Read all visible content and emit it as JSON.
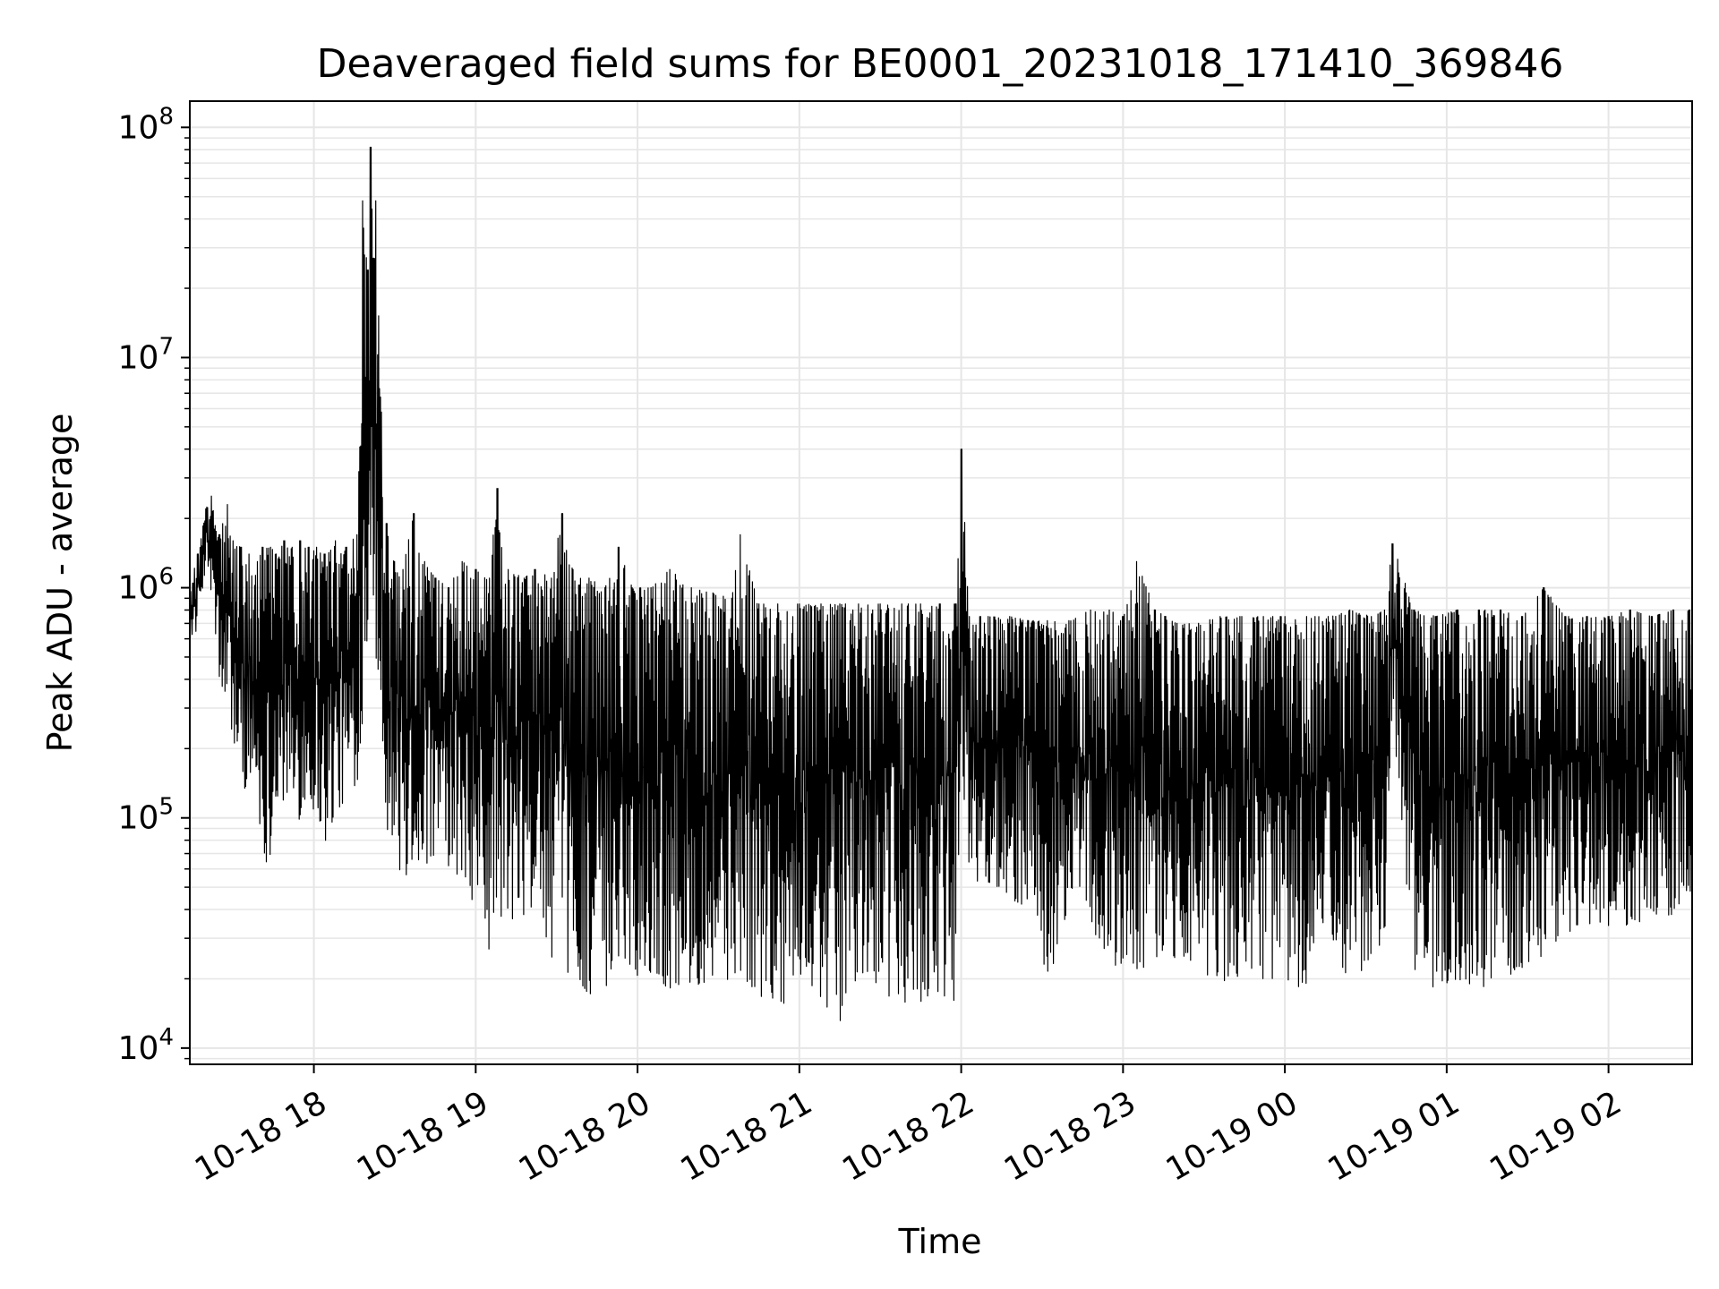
{
  "chart_data": {
    "type": "line",
    "title": "Deaveraged field sums for BE0001_20231018_171410_369846",
    "xlabel": "Time",
    "ylabel": "Peak ADU - average",
    "y_scale": "log",
    "ylim": [
      8500,
      130000000
    ],
    "xlim": [
      "2023-10-18 17:14",
      "2023-10-19 02:31"
    ],
    "grid": true,
    "colors": {
      "line": "#000000",
      "grid": "#e6e6e6",
      "axes": "#000000"
    },
    "x_tick_labels": [
      "10-18 18",
      "10-18 19",
      "10-18 20",
      "10-18 21",
      "10-18 22",
      "10-18 23",
      "10-19 00",
      "10-19 01",
      "10-19 02"
    ],
    "x_tick_times": [
      "2023-10-18 18:00",
      "2023-10-18 19:00",
      "2023-10-18 20:00",
      "2023-10-18 21:00",
      "2023-10-18 22:00",
      "2023-10-18 23:00",
      "2023-10-19 00:00",
      "2023-10-19 01:00",
      "2023-10-19 02:00"
    ],
    "y_ticks": [
      {
        "value": 10000,
        "base": "10",
        "exp": "4"
      },
      {
        "value": 100000,
        "base": "10",
        "exp": "5"
      },
      {
        "value": 1000000,
        "base": "10",
        "exp": "6"
      },
      {
        "value": 10000000,
        "base": "10",
        "exp": "7"
      },
      {
        "value": 100000000,
        "base": "10",
        "exp": "8"
      }
    ],
    "series": [
      {
        "color": "#000000",
        "x": [
          "2023-10-18 17:14",
          "2023-10-18 17:17",
          "2023-10-18 17:20",
          "2023-10-18 17:22",
          "2023-10-18 17:25",
          "2023-10-18 17:28",
          "2023-10-18 17:30",
          "2023-10-18 17:33",
          "2023-10-18 17:36",
          "2023-10-18 17:39",
          "2023-10-18 17:41",
          "2023-10-18 17:44",
          "2023-10-18 17:46",
          "2023-10-18 17:49",
          "2023-10-18 17:52",
          "2023-10-18 17:55",
          "2023-10-18 17:58",
          "2023-10-18 18:01",
          "2023-10-18 18:04",
          "2023-10-18 18:08",
          "2023-10-18 18:12",
          "2023-10-18 18:16",
          "2023-10-18 18:18",
          "2023-10-18 18:20",
          "2023-10-18 18:21",
          "2023-10-18 18:22",
          "2023-10-18 18:23",
          "2023-10-18 18:25",
          "2023-10-18 18:27",
          "2023-10-18 18:30",
          "2023-10-18 18:33",
          "2023-10-18 18:37",
          "2023-10-18 18:41",
          "2023-10-18 18:45",
          "2023-10-18 18:50",
          "2023-10-18 18:55",
          "2023-10-18 19:00",
          "2023-10-18 19:05",
          "2023-10-18 19:08",
          "2023-10-18 19:12",
          "2023-10-18 19:18",
          "2023-10-18 19:22",
          "2023-10-18 19:28",
          "2023-10-18 19:32",
          "2023-10-18 19:36",
          "2023-10-18 19:42",
          "2023-10-18 19:48",
          "2023-10-18 19:53",
          "2023-10-18 19:58",
          "2023-10-18 20:05",
          "2023-10-18 20:12",
          "2023-10-18 20:20",
          "2023-10-18 20:28",
          "2023-10-18 20:35",
          "2023-10-18 20:38",
          "2023-10-18 20:45",
          "2023-10-18 20:52",
          "2023-10-18 21:00",
          "2023-10-18 21:08",
          "2023-10-18 21:15",
          "2023-10-18 21:22",
          "2023-10-18 21:30",
          "2023-10-18 21:38",
          "2023-10-18 21:45",
          "2023-10-18 21:52",
          "2023-10-18 21:58",
          "2023-10-18 22:00",
          "2023-10-18 22:03",
          "2023-10-18 22:10",
          "2023-10-18 22:18",
          "2023-10-18 22:25",
          "2023-10-18 22:32",
          "2023-10-18 22:40",
          "2023-10-18 22:48",
          "2023-10-18 22:55",
          "2023-10-18 23:00",
          "2023-10-18 23:05",
          "2023-10-18 23:12",
          "2023-10-18 23:20",
          "2023-10-18 23:28",
          "2023-10-18 23:36",
          "2023-10-18 23:44",
          "2023-10-18 23:52",
          "2023-10-19 00:00",
          "2023-10-19 00:08",
          "2023-10-19 00:16",
          "2023-10-19 00:24",
          "2023-10-19 00:32",
          "2023-10-19 00:37",
          "2023-10-19 00:40",
          "2023-10-19 00:48",
          "2023-10-19 00:56",
          "2023-10-19 01:04",
          "2023-10-19 01:12",
          "2023-10-19 01:20",
          "2023-10-19 01:28",
          "2023-10-19 01:36",
          "2023-10-19 01:44",
          "2023-10-19 01:52",
          "2023-10-19 02:00",
          "2023-10-19 02:08",
          "2023-10-19 02:16",
          "2023-10-19 02:24",
          "2023-10-19 02:30"
        ],
        "low": [
          600000,
          650000,
          1300000,
          900000,
          380000,
          260000,
          220000,
          130000,
          140000,
          110000,
          60000,
          70000,
          120000,
          110000,
          90000,
          100000,
          110000,
          100000,
          75000,
          100000,
          120000,
          140000,
          250000,
          700000,
          1200000,
          1000000,
          350000,
          300000,
          90000,
          70000,
          50000,
          60000,
          65000,
          55000,
          60000,
          48000,
          42000,
          25000,
          40000,
          32000,
          30000,
          45000,
          25000,
          22000,
          20000,
          17000,
          17000,
          25000,
          21000,
          20000,
          18000,
          18000,
          20000,
          19000,
          21000,
          17000,
          15000,
          17000,
          16000,
          13000,
          20000,
          17000,
          16000,
          15000,
          15000,
          16000,
          180000,
          55000,
          50000,
          45000,
          40000,
          18000,
          35000,
          30000,
          25000,
          20000,
          20000,
          22000,
          25000,
          22000,
          18000,
          20000,
          20000,
          20000,
          17000,
          22000,
          18000,
          25000,
          30000,
          280000,
          20000,
          18000,
          20000,
          18000,
          20000,
          22000,
          25000,
          30000,
          35000,
          32000,
          33000,
          35000,
          38000,
          45000
        ],
        "high": [
          1000000,
          1400000,
          2200000,
          2500000,
          1700000,
          2300000,
          1600000,
          1500000,
          1400000,
          1300000,
          1500000,
          1500000,
          1400000,
          1600000,
          1500000,
          1600000,
          1500000,
          1500000,
          1400000,
          1600000,
          1500000,
          1700000,
          48000000,
          24000000,
          82000000,
          27000000,
          48000000,
          5800000,
          1900000,
          1300000,
          1200000,
          2100000,
          1300000,
          1100000,
          1000000,
          1300000,
          1200000,
          1100000,
          2700000,
          1200000,
          1100000,
          1200000,
          1100000,
          2100000,
          1200000,
          1100000,
          1000000,
          1500000,
          1000000,
          1000000,
          1200000,
          1000000,
          950000,
          900000,
          1700000,
          850000,
          850000,
          850000,
          850000,
          850000,
          850000,
          850000,
          850000,
          850000,
          850000,
          850000,
          4000000,
          750000,
          750000,
          750000,
          720000,
          720000,
          720000,
          800000,
          800000,
          750000,
          1300000,
          800000,
          700000,
          700000,
          750000,
          750000,
          750000,
          750000,
          750000,
          750000,
          800000,
          750000,
          800000,
          1550000,
          800000,
          750000,
          800000,
          800000,
          800000,
          750000,
          1000000,
          750000,
          750000,
          750000,
          800000,
          750000,
          800000,
          800000
        ]
      }
    ]
  }
}
